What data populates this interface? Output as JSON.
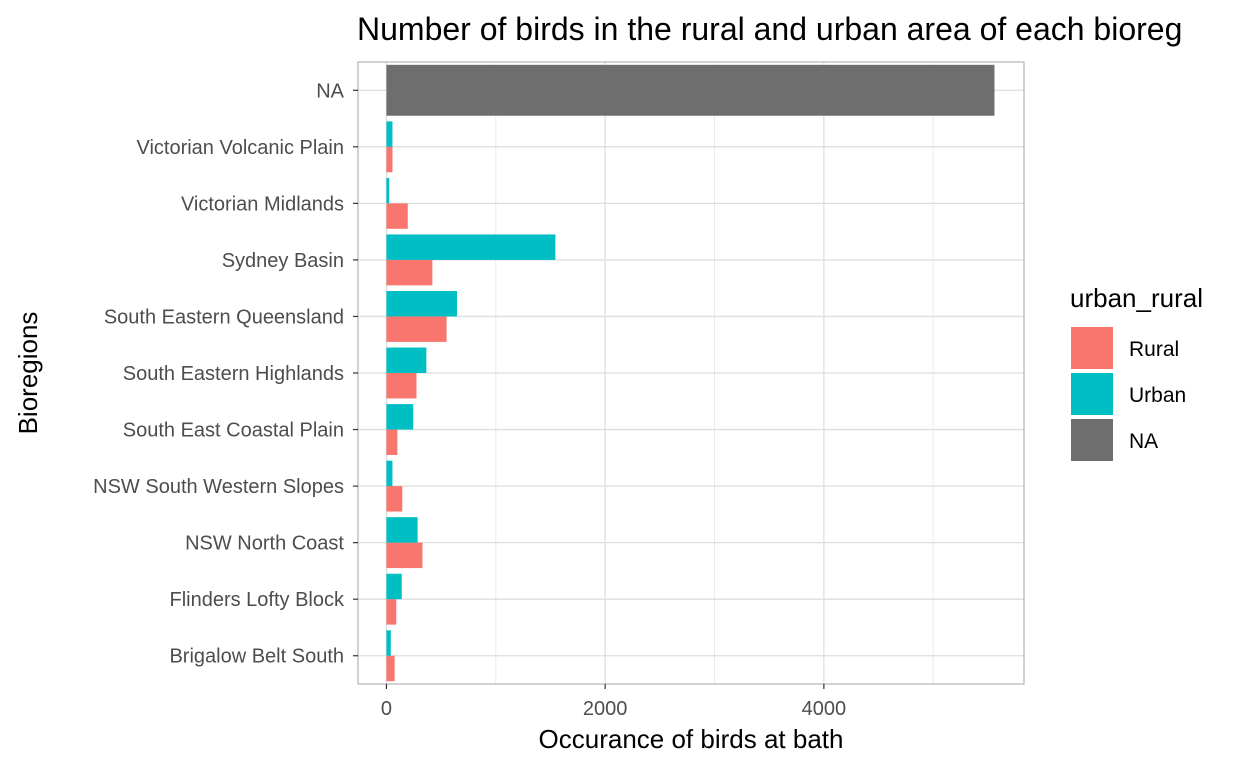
{
  "chart_data": {
    "type": "bar",
    "orientation": "horizontal",
    "title": "Number of birds in the rural and urban area of each bioreg",
    "xlabel": "Occurance of birds at bath",
    "ylabel": "Bioregions",
    "xlim": [
      -260,
      5830
    ],
    "xticks": [
      0,
      2000,
      4000
    ],
    "xtick_labels": [
      "0",
      "2000",
      "4000"
    ],
    "grid": true,
    "legend_position": "right",
    "legend": {
      "title": "urban_rural",
      "items": [
        {
          "label": "Rural",
          "color": "#F8766D"
        },
        {
          "label": "Urban",
          "color": "#00BFC4"
        },
        {
          "label": "NA",
          "color": "#6E6E6E"
        }
      ]
    },
    "categories": [
      "NA",
      "Victorian Volcanic Plain",
      "Victorian Midlands",
      "Sydney Basin",
      "South Eastern Queensland",
      "South Eastern Highlands",
      "South East Coastal Plain",
      "NSW South Western Slopes",
      "NSW North Coast",
      "Flinders Lofty Block",
      "Brigalow Belt South"
    ],
    "series": [
      {
        "name": "Rural",
        "color": "#F8766D",
        "values": [
          null,
          55,
          195,
          420,
          550,
          275,
          100,
          145,
          330,
          90,
          75
        ]
      },
      {
        "name": "Urban",
        "color": "#00BFC4",
        "values": [
          null,
          55,
          25,
          1545,
          645,
          365,
          245,
          55,
          285,
          140,
          40
        ]
      },
      {
        "name": "NA",
        "color": "#6E6E6E",
        "values": [
          5560,
          null,
          null,
          null,
          null,
          null,
          null,
          null,
          null,
          null,
          null
        ]
      }
    ]
  }
}
